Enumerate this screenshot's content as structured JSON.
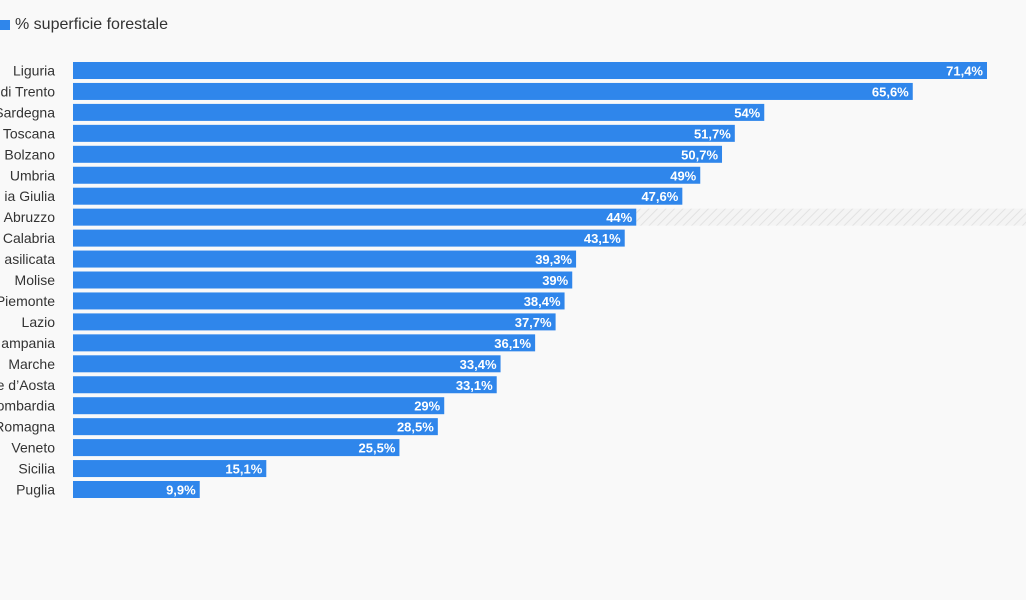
{
  "legend": {
    "label": "% superficie forestale",
    "color": "#2f86eb"
  },
  "chart_data": {
    "type": "bar",
    "orientation": "horizontal",
    "categories": [
      "Liguria",
      "di Trento",
      "Sardegna",
      "Toscana",
      "Bolzano",
      "Umbria",
      "ia Giulia",
      "Abruzzo",
      "Calabria",
      "asilicata",
      "Molise",
      "Piemonte",
      "Lazio",
      "ampania",
      "Marche",
      "e d’Aosta",
      "ombardia",
      "Romagna",
      "Veneto",
      "Sicilia",
      "Puglia"
    ],
    "series": [
      {
        "name": "% superficie forestale",
        "values": [
          71.4,
          65.6,
          54,
          51.7,
          50.7,
          49,
          47.6,
          44,
          43.1,
          39.3,
          39,
          38.4,
          37.7,
          36.1,
          33.4,
          33.1,
          29,
          28.5,
          25.5,
          15.1,
          9.9
        ]
      }
    ],
    "value_labels": [
      "71,4%",
      "65,6%",
      "54%",
      "51,7%",
      "50,7%",
      "49%",
      "47,6%",
      "44%",
      "43,1%",
      "39,3%",
      "39%",
      "38,4%",
      "37,7%",
      "36,1%",
      "33,4%",
      "33,1%",
      "29%",
      "28,5%",
      "25,5%",
      "15,1%",
      "9,9%"
    ],
    "highlighted_category": "Abruzzo",
    "xlim": [
      0,
      71.4
    ],
    "grid": false,
    "legend_position": "top-left",
    "bar_color": "#2f86eb"
  }
}
